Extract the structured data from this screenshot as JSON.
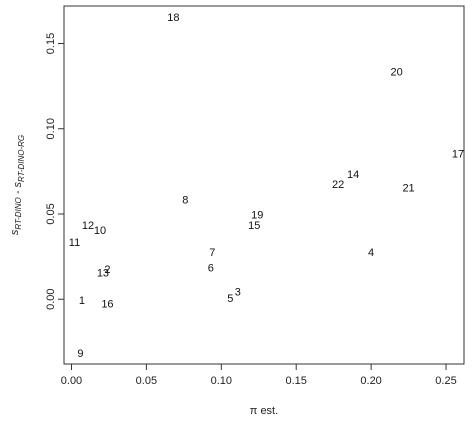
{
  "chart_data": {
    "type": "scatter",
    "title": "",
    "xlabel": "π est.",
    "ylabel": {
      "parts": [
        {
          "text": "s",
          "sub": "RT-DINO"
        },
        {
          "text": " - "
        },
        {
          "text": "s",
          "sub": "RT-DINO-RG"
        }
      ]
    },
    "xlim": [
      -0.005,
      0.262
    ],
    "ylim": [
      -0.038,
      0.172
    ],
    "xticks": [
      0.0,
      0.05,
      0.1,
      0.15,
      0.2,
      0.25
    ],
    "xtick_labels": [
      "0.00",
      "0.05",
      "0.10",
      "0.15",
      "0.20",
      "0.25"
    ],
    "yticks": [
      0.0,
      0.05,
      0.1,
      0.15
    ],
    "ytick_labels": [
      "0.00",
      "0.05",
      "0.10",
      "0.15"
    ],
    "grid": false,
    "marker": "text-label",
    "points": [
      {
        "label": "1",
        "x": 0.007,
        "y": -0.001
      },
      {
        "label": "2",
        "x": 0.024,
        "y": 0.017
      },
      {
        "label": "3",
        "x": 0.111,
        "y": 0.004
      },
      {
        "label": "4",
        "x": 0.2,
        "y": 0.027
      },
      {
        "label": "5",
        "x": 0.106,
        "y": 0.0
      },
      {
        "label": "6",
        "x": 0.093,
        "y": 0.018
      },
      {
        "label": "7",
        "x": 0.094,
        "y": 0.027
      },
      {
        "label": "8",
        "x": 0.076,
        "y": 0.058
      },
      {
        "label": "9",
        "x": 0.006,
        "y": -0.032
      },
      {
        "label": "10",
        "x": 0.019,
        "y": 0.04
      },
      {
        "label": "11",
        "x": 0.002,
        "y": 0.033
      },
      {
        "label": "12",
        "x": 0.011,
        "y": 0.043
      },
      {
        "label": "13",
        "x": 0.021,
        "y": 0.015
      },
      {
        "label": "14",
        "x": 0.188,
        "y": 0.073
      },
      {
        "label": "15",
        "x": 0.122,
        "y": 0.043
      },
      {
        "label": "16",
        "x": 0.024,
        "y": -0.003
      },
      {
        "label": "17",
        "x": 0.258,
        "y": 0.085
      },
      {
        "label": "18",
        "x": 0.068,
        "y": 0.165
      },
      {
        "label": "19",
        "x": 0.124,
        "y": 0.049
      },
      {
        "label": "20",
        "x": 0.217,
        "y": 0.133
      },
      {
        "label": "21",
        "x": 0.225,
        "y": 0.065
      },
      {
        "label": "22",
        "x": 0.178,
        "y": 0.067
      }
    ]
  }
}
